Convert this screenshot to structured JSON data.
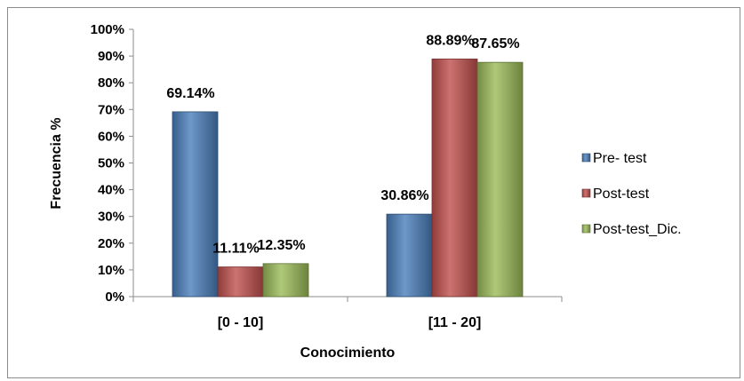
{
  "chart_data": {
    "type": "bar",
    "title": "",
    "xlabel": "Conocimiento",
    "ylabel": "Frecuencia %",
    "categories": [
      "[0 - 10]",
      "[11 - 20]"
    ],
    "ylim": [
      0,
      100
    ],
    "y_ticks": [
      "0%",
      "10%",
      "20%",
      "30%",
      "40%",
      "50%",
      "60%",
      "70%",
      "80%",
      "90%",
      "100%"
    ],
    "grid": false,
    "legend_position": "right",
    "series": [
      {
        "name": "Pre- test",
        "values": [
          69.14,
          30.86
        ],
        "labels": [
          "69.14%",
          "30.86%"
        ],
        "color": "#4a7ebb"
      },
      {
        "name": "Post-test",
        "values": [
          11.11,
          88.89
        ],
        "labels": [
          "11.11%",
          "88.89%"
        ],
        "color": "#c0504d"
      },
      {
        "name": "Post-test_Dic.",
        "values": [
          12.35,
          87.65
        ],
        "labels": [
          "12.35%",
          "87.65%"
        ],
        "color": "#9bbb59"
      }
    ]
  }
}
